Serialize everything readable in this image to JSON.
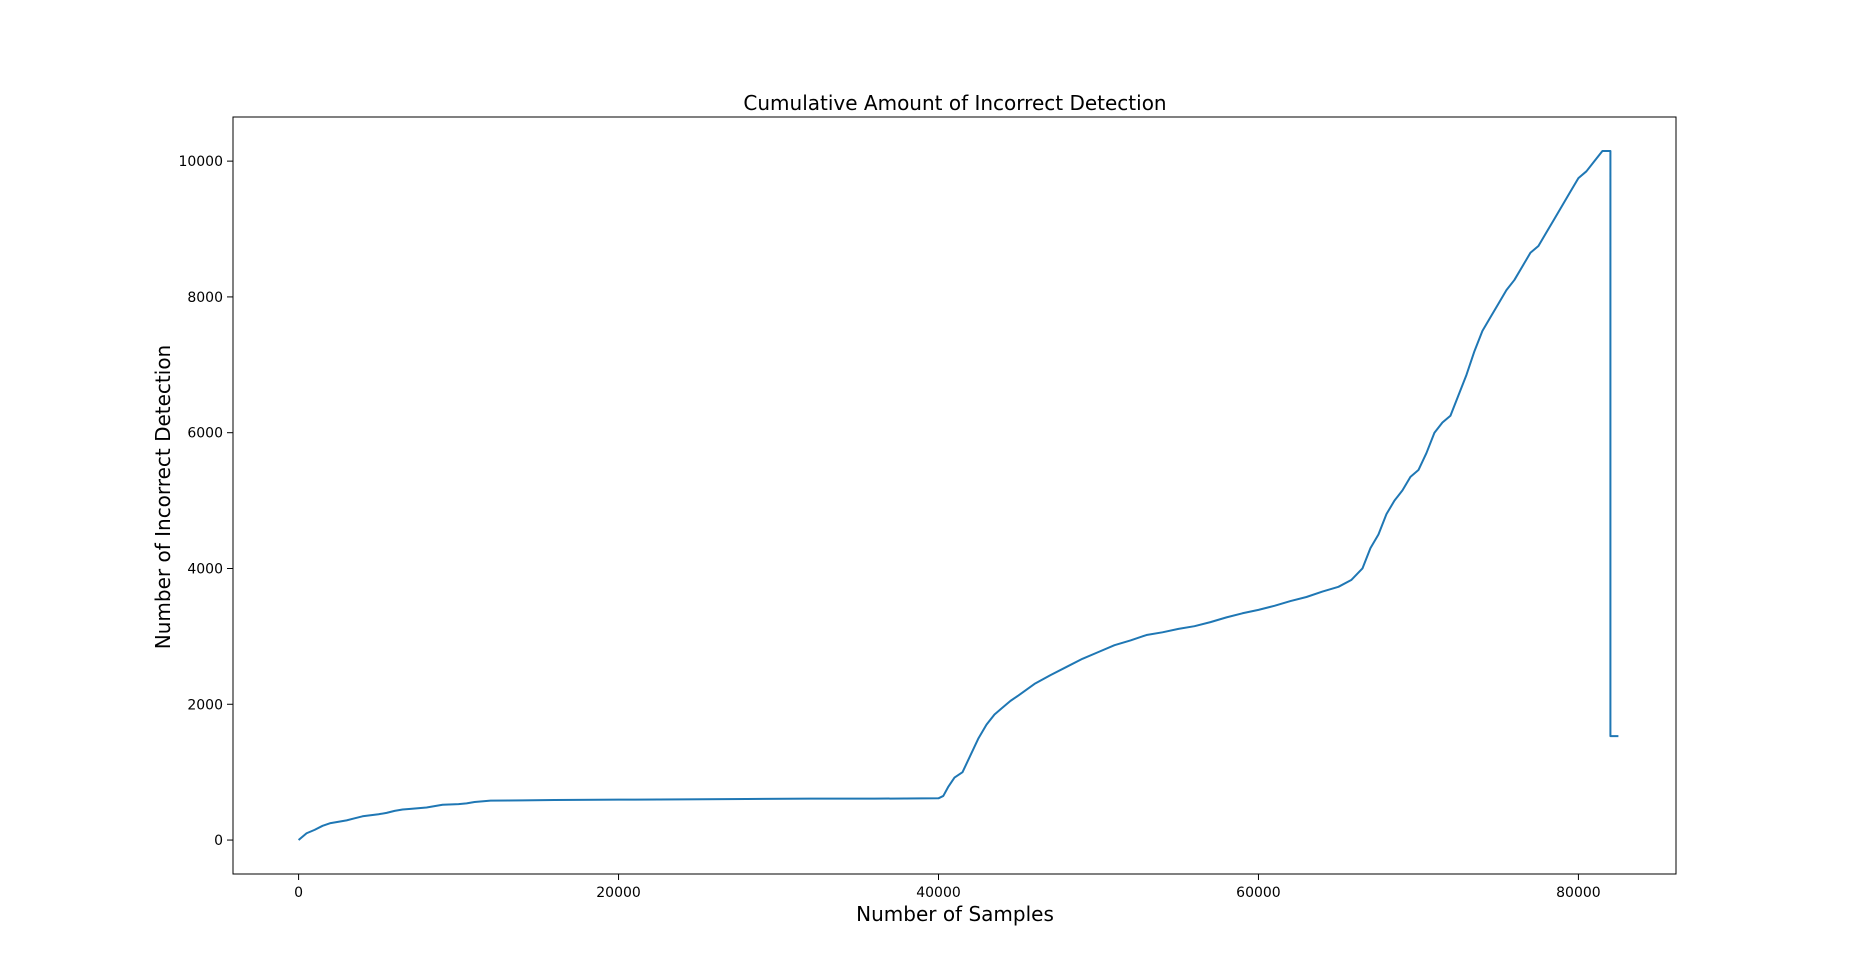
{
  "chart_data": {
    "type": "line",
    "title": "Cumulative Amount of Incorrect Detection",
    "xlabel": "Number of Samples",
    "ylabel": "Number of Incorrect Detection",
    "xlim": [
      -4100,
      86100
    ],
    "ylim": [
      -500,
      10650
    ],
    "xticks": [
      0,
      20000,
      40000,
      60000,
      80000
    ],
    "xtick_labels": [
      "0",
      "20000",
      "40000",
      "60000",
      "80000"
    ],
    "yticks": [
      0,
      2000,
      4000,
      6000,
      8000,
      10000
    ],
    "ytick_labels": [
      "0",
      "2000",
      "4000",
      "6000",
      "8000",
      "10000"
    ],
    "grid": false,
    "color": "#1f77b4",
    "series": [
      {
        "x": [
          0,
          500,
          1000,
          1500,
          2000,
          2500,
          3000,
          3500,
          4000,
          5000,
          5500,
          6000,
          6500,
          7000,
          8000,
          8500,
          9000,
          10000,
          10500,
          11000,
          12000,
          14000,
          16000,
          20000,
          24000,
          28000,
          32000,
          36000,
          40000,
          40300,
          40600,
          41000,
          41500,
          42000,
          42500,
          43000,
          43500,
          44000,
          44500,
          45000,
          46000,
          47000,
          48000,
          49000,
          50000,
          51000,
          52000,
          53000,
          54000,
          55000,
          56000,
          57000,
          58000,
          59000,
          60000,
          61000,
          62000,
          63000,
          64000,
          65000,
          65800,
          66500,
          67000,
          67500,
          68000,
          68500,
          69000,
          69500,
          70000,
          70500,
          71000,
          71500,
          72000,
          72500,
          73000,
          73500,
          74000,
          74500,
          75000,
          75500,
          76000,
          76500,
          77000,
          77500,
          78000,
          78500,
          79000,
          79500,
          80000,
          80500,
          81000,
          81500,
          82000,
          82000,
          82500
        ],
        "y": [
          0,
          100,
          150,
          210,
          250,
          270,
          290,
          320,
          350,
          380,
          400,
          430,
          450,
          460,
          480,
          500,
          520,
          530,
          540,
          560,
          580,
          585,
          590,
          595,
          600,
          605,
          610,
          610,
          615,
          650,
          780,
          920,
          1000,
          1250,
          1500,
          1700,
          1850,
          1950,
          2050,
          2130,
          2300,
          2430,
          2550,
          2670,
          2770,
          2870,
          2940,
          3020,
          3060,
          3110,
          3150,
          3210,
          3280,
          3340,
          3390,
          3450,
          3520,
          3580,
          3660,
          3730,
          3830,
          4000,
          4300,
          4500,
          4800,
          5000,
          5150,
          5350,
          5450,
          5700,
          6000,
          6150,
          6250,
          6550,
          6850,
          7200,
          7500,
          7700,
          7900,
          8100,
          8250,
          8450,
          8650,
          8750,
          8950,
          9150,
          9350,
          9550,
          9750,
          9850,
          10000,
          10150,
          10150,
          1530,
          1530
        ]
      }
    ]
  }
}
